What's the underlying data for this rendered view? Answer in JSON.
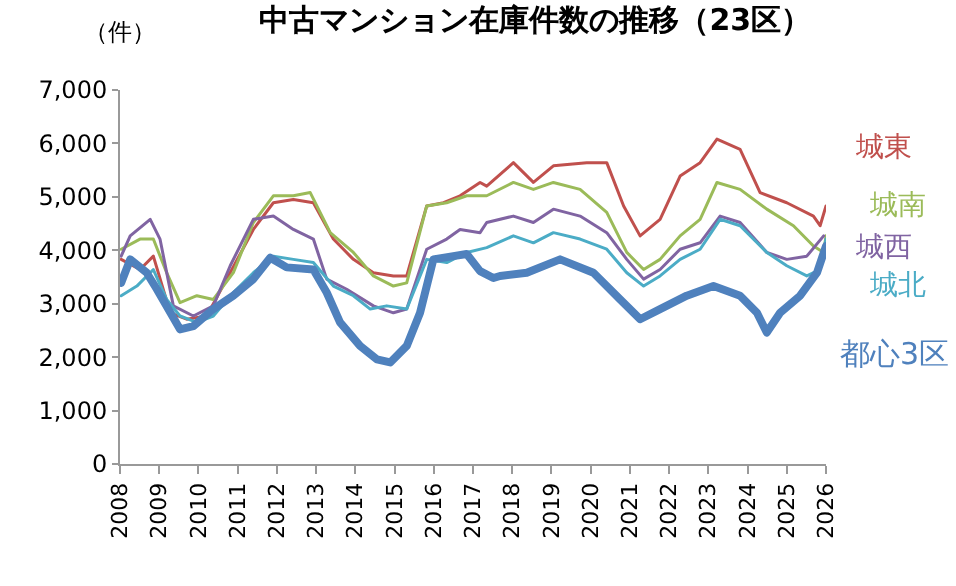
{
  "chart_data": {
    "type": "line",
    "title": "中古マンション在庫件数の推移（23区）",
    "ylabel": "（件）",
    "xlim": [
      2008,
      2026
    ],
    "xticks": [
      2008,
      2009,
      2010,
      2011,
      2012,
      2013,
      2014,
      2015,
      2016,
      2017,
      2018,
      2019,
      2020,
      2021,
      2022,
      2023,
      2024,
      2025,
      2026
    ],
    "ylim": [
      0,
      7000
    ],
    "yticks": [
      0,
      {
        "value": 1000,
        "label": "1,000"
      },
      {
        "value": 2000,
        "label": "2,000"
      },
      {
        "value": 3000,
        "label": "3,000"
      },
      {
        "value": 4000,
        "label": "4,000"
      },
      {
        "value": 5000,
        "label": "5,000"
      },
      {
        "value": 6000,
        "label": "6,000"
      },
      {
        "value": 7000,
        "label": "7,000"
      }
    ],
    "legend": false,
    "marker": "none",
    "line_style": "solid",
    "series": [
      {
        "name": "城東",
        "color": "#c0504d",
        "x": [
          2008.03,
          2008.51,
          2008.85,
          2009.28,
          2009.7,
          2010.21,
          2010.72,
          2011.4,
          2011.91,
          2012.42,
          2012.93,
          2013.44,
          2013.95,
          2014.46,
          2014.97,
          2015.31,
          2015.82,
          2016.25,
          2016.67,
          2017.18,
          2017.35,
          2018.03,
          2018.54,
          2019.05,
          2019.9,
          2020.41,
          2020.84,
          2021.26,
          2021.77,
          2022.28,
          2022.79,
          2023.22,
          2023.81,
          2024.32,
          2025.0,
          2025.68,
          2025.85,
          2026.0
        ],
        "values": [
          3830,
          3640,
          3890,
          2830,
          2710,
          2770,
          3460,
          4390,
          4890,
          4950,
          4890,
          4210,
          3830,
          3580,
          3520,
          3520,
          4830,
          4890,
          5020,
          5270,
          5200,
          5640,
          5270,
          5580,
          5640,
          5640,
          4830,
          4270,
          4580,
          5390,
          5640,
          6080,
          5890,
          5080,
          4890,
          4640,
          4460,
          4830
        ]
      },
      {
        "name": "城南",
        "color": "#9bbb59",
        "x": [
          2008.03,
          2008.51,
          2008.85,
          2009.19,
          2009.53,
          2009.96,
          2010.38,
          2010.89,
          2011.4,
          2011.91,
          2012.42,
          2012.85,
          2013.36,
          2013.95,
          2014.46,
          2014.97,
          2015.31,
          2015.82,
          2016.33,
          2016.84,
          2017.35,
          2018.03,
          2018.54,
          2019.05,
          2019.73,
          2020.41,
          2020.92,
          2021.35,
          2021.77,
          2022.28,
          2022.79,
          2023.22,
          2023.81,
          2024.49,
          2025.17,
          2025.68,
          2025.94,
          2026.0
        ],
        "values": [
          4020,
          4210,
          4210,
          3580,
          3020,
          3150,
          3080,
          3580,
          4520,
          5020,
          5020,
          5080,
          4330,
          3960,
          3520,
          3330,
          3390,
          4830,
          4890,
          5020,
          5020,
          5270,
          5140,
          5270,
          5140,
          4710,
          3960,
          3640,
          3830,
          4270,
          4580,
          5270,
          5140,
          4770,
          4460,
          4080,
          3960,
          4270
        ]
      },
      {
        "name": "城西",
        "color": "#8064a2",
        "x": [
          2008.03,
          2008.26,
          2008.77,
          2009.02,
          2009.36,
          2009.87,
          2010.38,
          2010.81,
          2011.4,
          2011.91,
          2012.42,
          2012.93,
          2013.27,
          2013.78,
          2014.46,
          2014.97,
          2015.31,
          2015.82,
          2016.33,
          2016.67,
          2017.18,
          2017.35,
          2018.03,
          2018.54,
          2019.05,
          2019.73,
          2020.41,
          2020.92,
          2021.35,
          2021.77,
          2022.28,
          2022.79,
          2023.3,
          2023.81,
          2024.49,
          2025.0,
          2025.51,
          2025.94
        ],
        "values": [
          3890,
          4270,
          4580,
          4210,
          2960,
          2770,
          2960,
          3710,
          4580,
          4640,
          4390,
          4210,
          3460,
          3270,
          2960,
          2830,
          2900,
          4020,
          4210,
          4390,
          4330,
          4520,
          4640,
          4520,
          4770,
          4640,
          4330,
          3830,
          3460,
          3640,
          4020,
          4140,
          4640,
          4520,
          3960,
          3830,
          3890,
          4270
        ]
      },
      {
        "name": "城北",
        "color": "#4bacc6",
        "x": [
          2008.03,
          2008.43,
          2008.85,
          2009.19,
          2009.53,
          2009.96,
          2010.38,
          2010.89,
          2011.4,
          2011.91,
          2012.42,
          2012.93,
          2013.44,
          2013.95,
          2014.38,
          2014.8,
          2015.31,
          2015.82,
          2016.33,
          2016.84,
          2017.35,
          2018.03,
          2018.54,
          2019.05,
          2019.73,
          2020.41,
          2020.92,
          2021.35,
          2021.77,
          2022.28,
          2022.79,
          2023.3,
          2023.81,
          2024.49,
          2025.0,
          2025.51,
          2025.85,
          2026.0
        ],
        "values": [
          3150,
          3330,
          3640,
          3080,
          2770,
          2650,
          2770,
          3210,
          3580,
          3890,
          3830,
          3770,
          3330,
          3150,
          2900,
          2960,
          2900,
          3830,
          3770,
          3960,
          4050,
          4270,
          4140,
          4330,
          4210,
          4020,
          3580,
          3330,
          3520,
          3830,
          4020,
          4580,
          4460,
          3960,
          3710,
          3520,
          3640,
          4210
        ]
      },
      {
        "name": "都心3区",
        "color": "#4f81bd",
        "x": [
          2008.03,
          2008.26,
          2008.68,
          2008.94,
          2009.53,
          2009.87,
          2010.38,
          2010.89,
          2011.4,
          2011.83,
          2012.25,
          2012.93,
          2013.27,
          2013.61,
          2014.12,
          2014.55,
          2014.89,
          2015.31,
          2015.65,
          2015.99,
          2016.5,
          2016.84,
          2017.18,
          2017.52,
          2017.69,
          2018.37,
          2019.22,
          2020.07,
          2020.75,
          2021.26,
          2021.77,
          2022.45,
          2023.13,
          2023.81,
          2024.24,
          2024.49,
          2024.83,
          2025.34,
          2025.77,
          2026.0
        ],
        "values": [
          3390,
          3830,
          3580,
          3270,
          2520,
          2580,
          2900,
          3150,
          3460,
          3860,
          3680,
          3640,
          3210,
          2650,
          2210,
          1960,
          1900,
          2210,
          2830,
          3830,
          3890,
          3930,
          3610,
          3480,
          3520,
          3580,
          3830,
          3580,
          3080,
          2710,
          2900,
          3150,
          3330,
          3150,
          2830,
          2460,
          2830,
          3150,
          3580,
          4080
        ]
      }
    ]
  }
}
